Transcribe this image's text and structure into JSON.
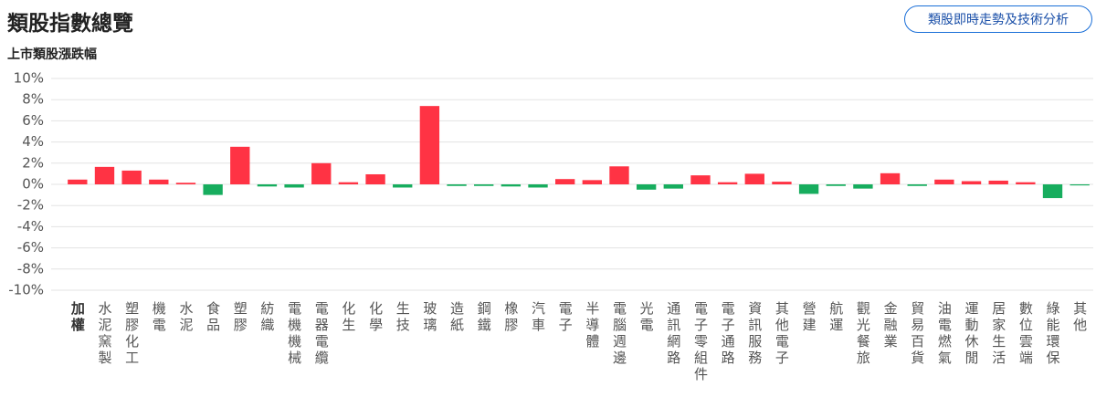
{
  "header": {
    "title": "類股指數總覽",
    "button": "類股即時走勢及技術分析"
  },
  "chart_data": {
    "type": "bar",
    "subtitle": "上市類股漲跌幅",
    "categories": [
      "加權",
      "水泥窯製",
      "塑膠化工",
      "機電",
      "水泥",
      "食品",
      "塑膠",
      "紡織",
      "電機機械",
      "電器電纜",
      "化生",
      "化學",
      "生技",
      "玻璃",
      "造紙",
      "鋼鐵",
      "橡膠",
      "汽車",
      "電子",
      "半導體",
      "電腦週邊",
      "光電",
      "通訊網路",
      "電子零組件",
      "電子通路",
      "資訊服務",
      "其他電子",
      "營建",
      "航運",
      "觀光餐旅",
      "金融業",
      "貿易百貨",
      "油電燃氣",
      "運動休閒",
      "居家生活",
      "數位雲端",
      "綠能環保",
      "其他"
    ],
    "values": [
      0.45,
      1.65,
      1.3,
      0.45,
      0.15,
      -1.0,
      3.55,
      -0.2,
      -0.3,
      2.0,
      0.2,
      0.95,
      -0.3,
      7.4,
      -0.15,
      -0.15,
      -0.2,
      -0.3,
      0.5,
      0.4,
      1.7,
      -0.5,
      -0.4,
      0.85,
      0.2,
      1.0,
      0.25,
      -0.9,
      -0.15,
      -0.4,
      1.05,
      -0.15,
      0.45,
      0.3,
      0.35,
      0.2,
      -1.3,
      -0.1
    ],
    "positive_color": "#ff3344",
    "negative_color": "#17ad5e",
    "ylim": [
      -10,
      10
    ],
    "yticks": [
      {
        "value": 10,
        "label": "10%"
      },
      {
        "value": 8,
        "label": "8%"
      },
      {
        "value": 6,
        "label": "6%"
      },
      {
        "value": 4,
        "label": "4%"
      },
      {
        "value": 2,
        "label": "2%"
      },
      {
        "value": 0,
        "label": "0%"
      },
      {
        "value": -2,
        "label": "-2%"
      },
      {
        "value": -4,
        "label": "-4%"
      },
      {
        "value": -6,
        "label": "-6%"
      },
      {
        "value": -8,
        "label": "-8%"
      },
      {
        "value": -10,
        "label": "-10%"
      }
    ],
    "grid": true
  }
}
